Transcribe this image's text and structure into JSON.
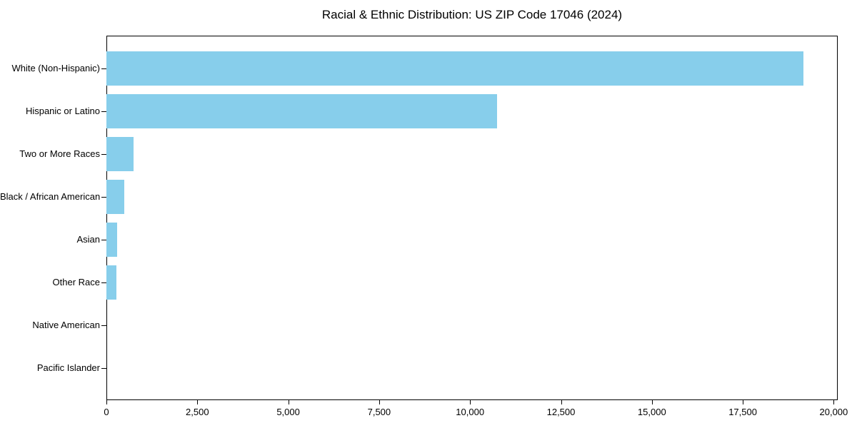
{
  "chart_data": {
    "type": "bar",
    "orientation": "horizontal",
    "title": "Racial & Ethnic Distribution: US ZIP Code 17046 (2024)",
    "categories": [
      "White (Non-Hispanic)",
      "Hispanic or Latino",
      "Two or More Races",
      "Black / African American",
      "Asian",
      "Other Race",
      "Native American",
      "Pacific Islander"
    ],
    "values": [
      19170,
      10740,
      755,
      485,
      300,
      275,
      0,
      0
    ],
    "xlabel": "",
    "ylabel": "",
    "xlim": [
      0,
      20110
    ],
    "xticks": [
      0,
      2500,
      5000,
      7500,
      10000,
      12500,
      15000,
      17500,
      20000
    ],
    "xtick_labels": [
      "0",
      "2,500",
      "5,000",
      "7,500",
      "10,000",
      "12,500",
      "15,000",
      "17,500",
      "20,000"
    ],
    "bar_color": "#87CEEB",
    "frame_color": "#000000",
    "background_color": "#ffffff",
    "grid": false,
    "legend": false,
    "value_labels": false
  }
}
